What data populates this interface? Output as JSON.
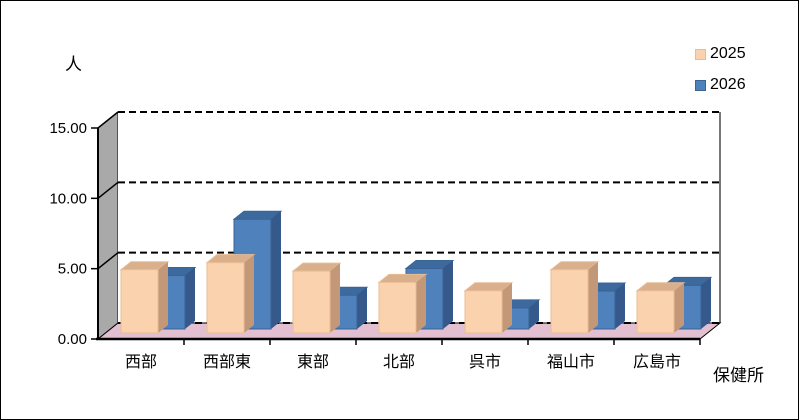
{
  "chart_data": {
    "type": "bar",
    "projection": "3d-clustered-column",
    "categories": [
      "西部",
      "西部東",
      "東部",
      "北部",
      "呉市",
      "福山市",
      "広島市"
    ],
    "series": [
      {
        "name": "2025",
        "values": [
          4.5,
          5.0,
          4.4,
          3.6,
          3.0,
          4.5,
          3.0
        ],
        "color": "#FAD2AE",
        "color_top": "#D9AF8C",
        "color_side": "#C39878",
        "color_border": "#E9BD93"
      },
      {
        "name": "2026",
        "values": [
          3.8,
          7.8,
          2.4,
          4.3,
          1.5,
          2.7,
          3.1
        ],
        "color": "#4F81BD",
        "color_top": "#3D6A9E",
        "color_side": "#34598A",
        "color_border": "#3A6494"
      }
    ],
    "ylabel": "人",
    "xlabel": "保健所",
    "ylim": [
      0,
      15
    ],
    "yticks": [
      {
        "value": 0,
        "label": "0.00"
      },
      {
        "value": 5,
        "label": "5.00"
      },
      {
        "value": 10,
        "label": "10.00"
      },
      {
        "value": 15,
        "label": "15.00"
      }
    ],
    "grid": "dashed-horizontal",
    "legend_position": "top-right",
    "wall_color": "#FFFFFF",
    "side_wall_color": "#A9A9A9",
    "floor_color": "#E2C0D1",
    "axis_color": "#000000"
  }
}
